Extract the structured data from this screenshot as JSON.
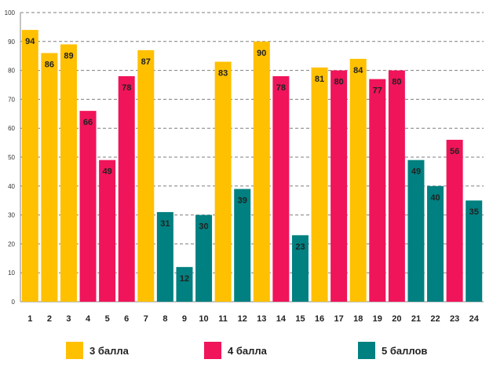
{
  "chart_data": {
    "type": "bar",
    "title": "",
    "xlabel": "",
    "ylabel": "",
    "ylim": [
      0,
      100
    ],
    "yticks": [
      0,
      10,
      20,
      30,
      40,
      50,
      60,
      70,
      80,
      90,
      100
    ],
    "grid": true,
    "categories": [
      "1",
      "2",
      "3",
      "4",
      "5",
      "6",
      "7",
      "8",
      "9",
      "10",
      "11",
      "12",
      "13",
      "14",
      "15",
      "16",
      "17",
      "18",
      "19",
      "20",
      "21",
      "22",
      "23",
      "24"
    ],
    "values": [
      94,
      86,
      89,
      66,
      49,
      78,
      87,
      31,
      12,
      30,
      83,
      39,
      90,
      78,
      23,
      81,
      80,
      84,
      77,
      80,
      49,
      40,
      56,
      35
    ],
    "groups": [
      "3 балла",
      "3 балла",
      "3 балла",
      "4 балла",
      "4 балла",
      "4 балла",
      "3 балла",
      "5 баллов",
      "5 баллов",
      "5 баллов",
      "3 балла",
      "5 баллов",
      "3 балла",
      "4 балла",
      "5 баллов",
      "3 балла",
      "4 балла",
      "3 балла",
      "4 балла",
      "4 балла",
      "5 баллов",
      "5 баллов",
      "4 балла",
      "5 баллов"
    ],
    "legend": [
      {
        "name": "3 балла",
        "color": "#FFC000"
      },
      {
        "name": "4 балла",
        "color": "#F0145A"
      },
      {
        "name": "5 баллов",
        "color": "#008080"
      }
    ],
    "legend_position": "bottom"
  }
}
